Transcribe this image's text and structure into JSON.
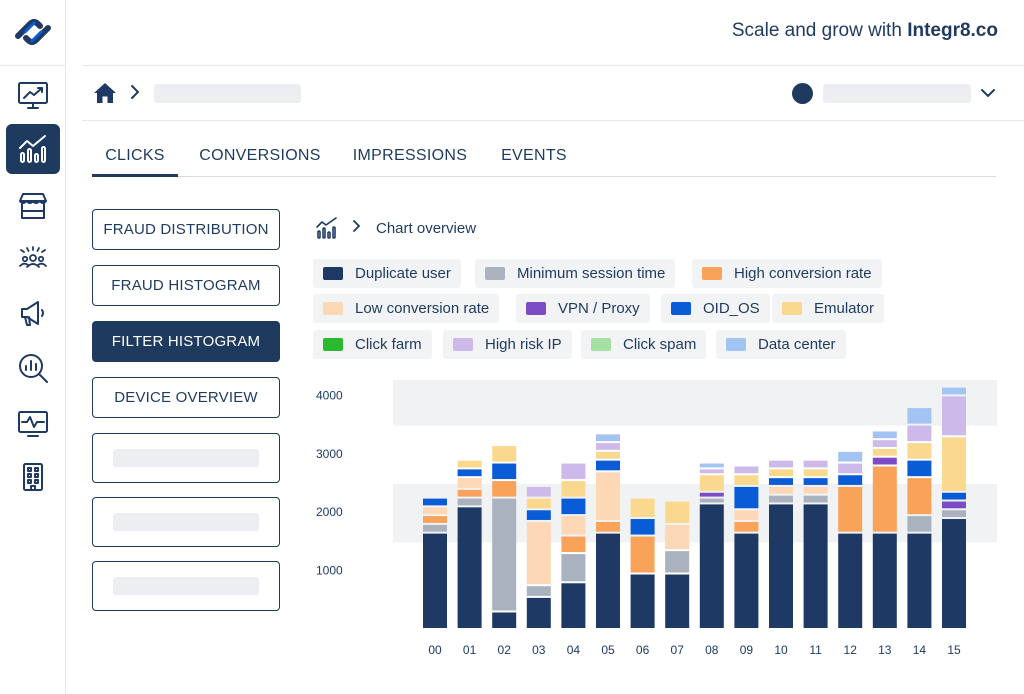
{
  "header": {
    "tagline_prefix": "Scale and grow with ",
    "tagline_brand": "Integr8.co"
  },
  "sidebar": {
    "items": [
      {
        "icon": "trend-chart-icon",
        "active": false
      },
      {
        "icon": "bar-chart-icon",
        "active": true
      },
      {
        "icon": "store-icon",
        "active": false
      },
      {
        "icon": "users-group-icon",
        "active": false
      },
      {
        "icon": "megaphone-icon",
        "active": false
      },
      {
        "icon": "analytics-search-icon",
        "active": false
      },
      {
        "icon": "monitor-pulse-icon",
        "active": false
      },
      {
        "icon": "building-icon",
        "active": false
      }
    ]
  },
  "tabs": [
    {
      "label": "CLICKS",
      "active": true
    },
    {
      "label": "CONVERSIONS",
      "active": false
    },
    {
      "label": "IMPRESSIONS",
      "active": false
    },
    {
      "label": "EVENTS",
      "active": false
    }
  ],
  "menu": {
    "fraud_distribution": "FRAUD DISTRIBUTION",
    "fraud_histogram": "FRAUD HISTOGRAM",
    "filter_histogram": "FILTER HISTOGRAM",
    "device_overview": "DEVICE OVERVIEW"
  },
  "chart_breadcrumb": {
    "label": "Chart overview"
  },
  "legend": [
    {
      "name": "Duplicate user",
      "color": "#1e3a64"
    },
    {
      "name": "Minimum session time",
      "color": "#a9b2be"
    },
    {
      "name": "High conversion rate",
      "color": "#f9a25a"
    },
    {
      "name": "Low conversion rate",
      "color": "#fcd8b6"
    },
    {
      "name": "VPN / Proxy",
      "color": "#7c4cc4"
    },
    {
      "name": "OID_OS",
      "color": "#0a5bd6"
    },
    {
      "name": "Emulator",
      "color": "#fad98e"
    },
    {
      "name": "Click farm",
      "color": "#2bb930"
    },
    {
      "name": "High risk IP",
      "color": "#cdb9ea"
    },
    {
      "name": "Click spam",
      "color": "#a5e0a3"
    },
    {
      "name": "Data center",
      "color": "#a3c4f2"
    }
  ],
  "chart_data": {
    "type": "bar",
    "stacked": true,
    "categories": [
      "00",
      "01",
      "02",
      "03",
      "04",
      "05",
      "06",
      "07",
      "08",
      "09",
      "10",
      "11",
      "12",
      "13",
      "14",
      "15"
    ],
    "y_ticks": [
      1000,
      2000,
      3000,
      4000
    ],
    "ylim": [
      0,
      4400
    ],
    "series": [
      {
        "name": "Duplicate user",
        "values": [
          1650,
          2100,
          300,
          550,
          800,
          1650,
          950,
          950,
          2150,
          1650,
          2150,
          2150,
          1650,
          1650,
          1650,
          1900
        ]
      },
      {
        "name": "Minimum session time",
        "values": [
          150,
          150,
          1950,
          200,
          500,
          0,
          0,
          400,
          100,
          0,
          150,
          150,
          0,
          0,
          300,
          150
        ]
      },
      {
        "name": "High conversion rate",
        "values": [
          150,
          150,
          300,
          0,
          300,
          200,
          650,
          0,
          0,
          200,
          0,
          0,
          800,
          1150,
          650,
          0
        ]
      },
      {
        "name": "Low conversion rate",
        "values": [
          150,
          200,
          0,
          1100,
          350,
          850,
          0,
          450,
          0,
          200,
          150,
          150,
          0,
          0,
          0,
          0
        ]
      },
      {
        "name": "VPN / Proxy",
        "values": [
          0,
          0,
          0,
          0,
          0,
          0,
          0,
          0,
          100,
          0,
          0,
          0,
          0,
          150,
          0,
          150
        ]
      },
      {
        "name": "OID_OS",
        "values": [
          150,
          150,
          300,
          200,
          300,
          200,
          300,
          0,
          0,
          400,
          150,
          150,
          200,
          0,
          300,
          150
        ]
      },
      {
        "name": "Emulator",
        "values": [
          0,
          150,
          300,
          200,
          300,
          150,
          350,
          400,
          300,
          200,
          150,
          150,
          0,
          150,
          300,
          950
        ]
      },
      {
        "name": "Click farm",
        "values": [
          0,
          0,
          0,
          0,
          0,
          0,
          0,
          0,
          0,
          0,
          0,
          0,
          0,
          0,
          0,
          0
        ]
      },
      {
        "name": "High risk IP",
        "values": [
          0,
          0,
          0,
          200,
          300,
          150,
          0,
          0,
          100,
          150,
          150,
          150,
          200,
          150,
          300,
          700
        ]
      },
      {
        "name": "Click spam",
        "values": [
          0,
          0,
          0,
          0,
          0,
          0,
          0,
          0,
          0,
          0,
          0,
          0,
          0,
          0,
          0,
          0
        ]
      },
      {
        "name": "Data center",
        "values": [
          0,
          0,
          0,
          0,
          0,
          150,
          0,
          0,
          100,
          0,
          0,
          0,
          200,
          150,
          300,
          150
        ]
      }
    ]
  }
}
